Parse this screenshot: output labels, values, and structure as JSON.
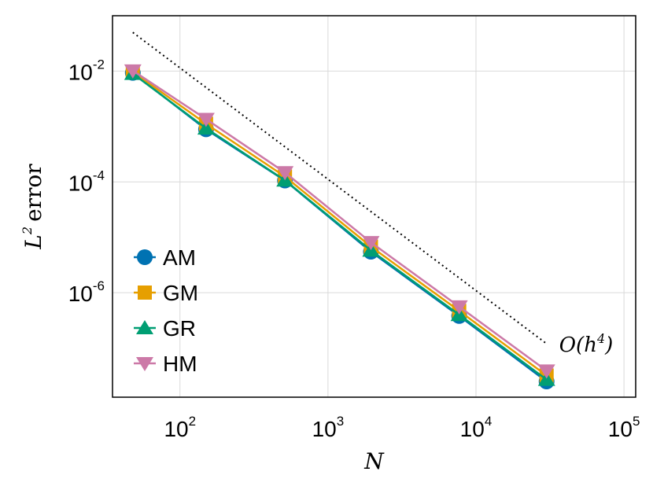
{
  "colors": {
    "AM": "#0072b2",
    "GM": "#e69f00",
    "GR": "#009e73",
    "HM": "#cc79a7",
    "grid": "#d9d9d9",
    "frame": "#000000",
    "reference_line": "#000000"
  },
  "chart_data": {
    "type": "line",
    "xscale": "log10",
    "yscale": "log10",
    "xlim": [
      35,
      120000
    ],
    "ylim": [
      1.3e-08,
      0.1
    ],
    "xlabel": "N",
    "ylabel_math": "L",
    "ylabel_sup": "2",
    "ylabel_text": "error",
    "grid": true,
    "legend_position": "bottom-left",
    "x_ticks": [
      {
        "value": 100,
        "base": "10",
        "exp": "2"
      },
      {
        "value": 1000,
        "base": "10",
        "exp": "3"
      },
      {
        "value": 10000,
        "base": "10",
        "exp": "4"
      },
      {
        "value": 100000,
        "base": "10",
        "exp": "5"
      }
    ],
    "y_ticks": [
      {
        "value": 0.01,
        "base": "10",
        "exp": "-2"
      },
      {
        "value": 0.0001,
        "base": "10",
        "exp": "-4"
      },
      {
        "value": 1e-06,
        "base": "10",
        "exp": "-6"
      }
    ],
    "x": [
      48,
      150,
      512,
      1950,
      7700,
      30000
    ],
    "series": [
      {
        "name": "AM",
        "marker": "circle",
        "values": [
          0.0093,
          0.00089,
          0.000106,
          5.5e-06,
          3.8e-07,
          2.5e-08
        ]
      },
      {
        "name": "GM",
        "marker": "square",
        "values": [
          0.0097,
          0.00112,
          0.000125,
          6.8e-06,
          4.7e-07,
          3.2e-08
        ]
      },
      {
        "name": "GR",
        "marker": "triangle-up",
        "values": [
          0.009,
          0.00093,
          0.000107,
          5.8e-06,
          4e-07,
          2.7e-08
        ]
      },
      {
        "name": "HM",
        "marker": "triangle-down",
        "values": [
          0.0102,
          0.00136,
          0.000148,
          8.1e-06,
          5.6e-07,
          3.9e-08
        ]
      }
    ],
    "reference": {
      "label_pre": "O(h",
      "label_sup": "4",
      "label_post": ")",
      "style": "dotted",
      "x": [
        48,
        30000
      ],
      "y": [
        0.05,
        1.2e-07
      ]
    }
  }
}
